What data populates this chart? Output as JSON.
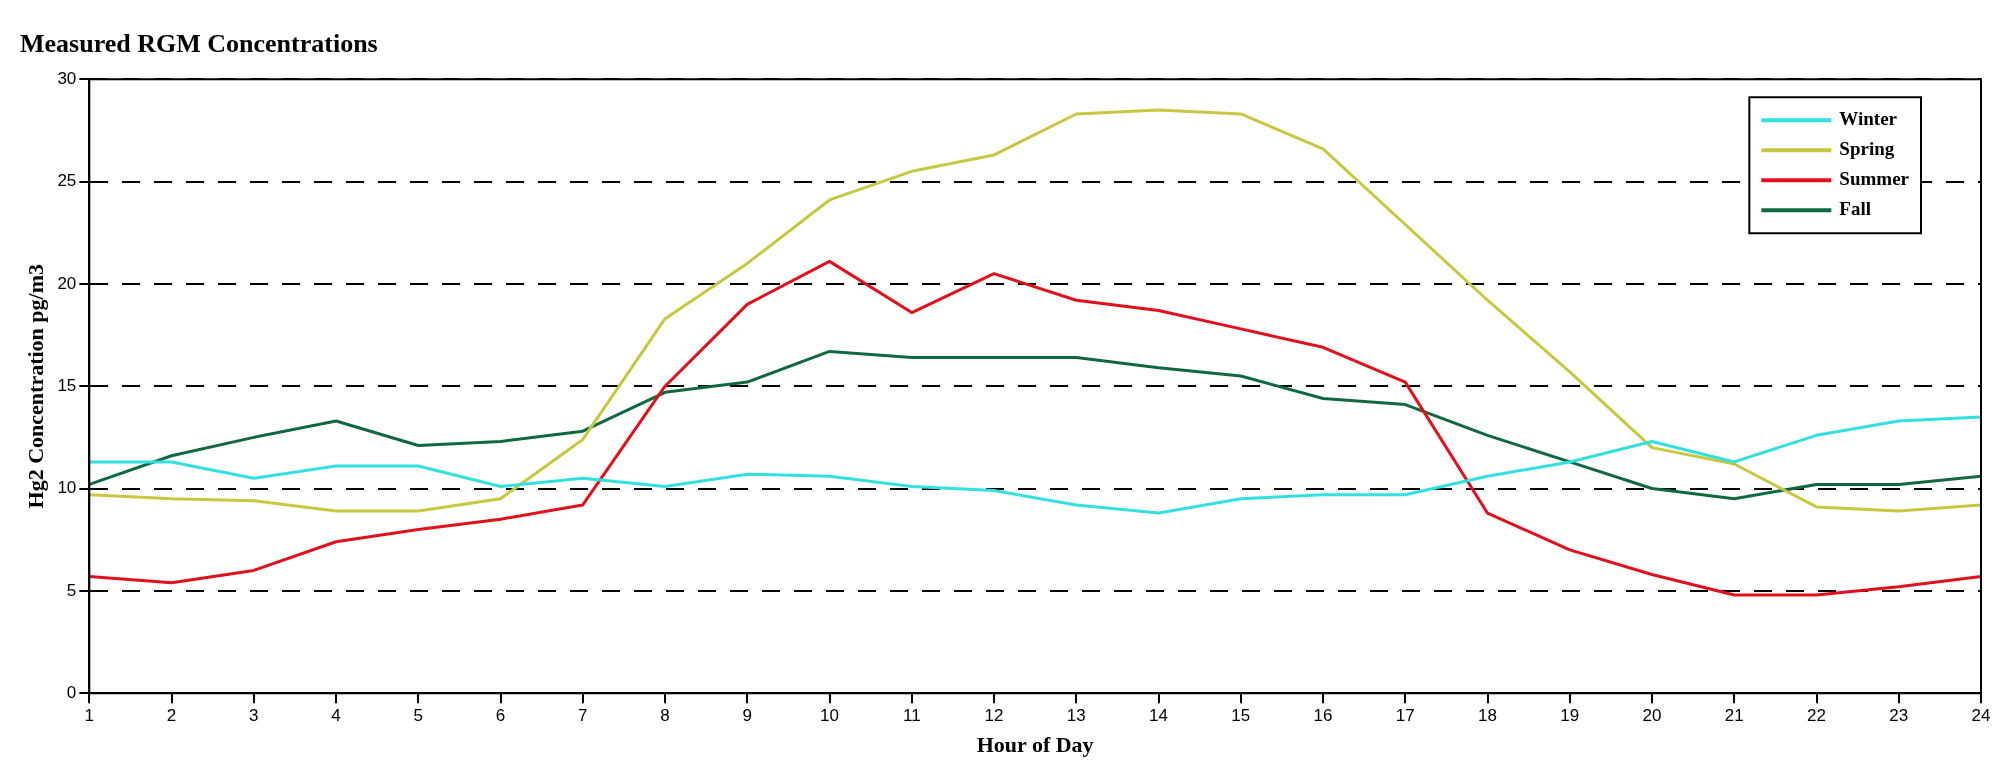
{
  "chart_data": {
    "type": "line",
    "title": "Measured RGM Concentrations",
    "xlabel": "Hour of Day",
    "ylabel": "Hg2 Concentration pg/m3",
    "x": [
      1,
      2,
      3,
      4,
      5,
      6,
      7,
      8,
      9,
      10,
      11,
      12,
      13,
      14,
      15,
      16,
      17,
      18,
      19,
      20,
      21,
      22,
      23,
      24
    ],
    "xlim": [
      1,
      24
    ],
    "xticks": [
      1,
      2,
      3,
      4,
      5,
      6,
      7,
      8,
      9,
      10,
      11,
      12,
      13,
      14,
      15,
      16,
      17,
      18,
      19,
      20,
      21,
      22,
      23,
      24
    ],
    "ylim": [
      0,
      30
    ],
    "yticks": [
      0,
      5,
      10,
      15,
      20,
      25,
      30
    ],
    "grid": "y",
    "legend": "top right",
    "marker": "none",
    "line_style": "solid",
    "series": [
      {
        "name": "Winter",
        "color": "#33e0e0",
        "values": [
          11.3,
          11.3,
          10.5,
          11.1,
          11.1,
          10.1,
          10.5,
          10.1,
          10.7,
          10.6,
          10.1,
          9.9,
          9.2,
          8.8,
          9.5,
          9.7,
          9.7,
          10.6,
          11.3,
          12.3,
          11.3,
          12.6,
          13.3,
          13.5
        ]
      },
      {
        "name": "Spring",
        "color": "#c8c840",
        "values": [
          9.7,
          9.5,
          9.4,
          8.9,
          8.9,
          9.5,
          12.4,
          18.3,
          21.0,
          24.1,
          25.5,
          26.3,
          28.3,
          28.5,
          28.3,
          26.6,
          22.9,
          19.2,
          15.7,
          12.0,
          11.2,
          9.1,
          8.9,
          9.2
        ]
      },
      {
        "name": "Summer",
        "color": "#e0101c",
        "values": [
          5.7,
          5.4,
          6.0,
          7.4,
          8.0,
          8.5,
          9.2,
          15.0,
          19.0,
          21.1,
          18.6,
          20.5,
          19.2,
          18.7,
          17.8,
          16.9,
          15.2,
          8.8,
          7.0,
          5.8,
          4.8,
          4.8,
          5.2,
          5.7
        ]
      },
      {
        "name": "Fall",
        "color": "#106840",
        "values": [
          10.2,
          11.6,
          12.5,
          13.3,
          12.1,
          12.3,
          12.8,
          14.7,
          15.2,
          16.7,
          16.4,
          16.4,
          16.4,
          15.9,
          15.5,
          14.4,
          14.1,
          12.6,
          11.3,
          10.0,
          9.5,
          10.2,
          10.2,
          10.6
        ]
      }
    ]
  }
}
